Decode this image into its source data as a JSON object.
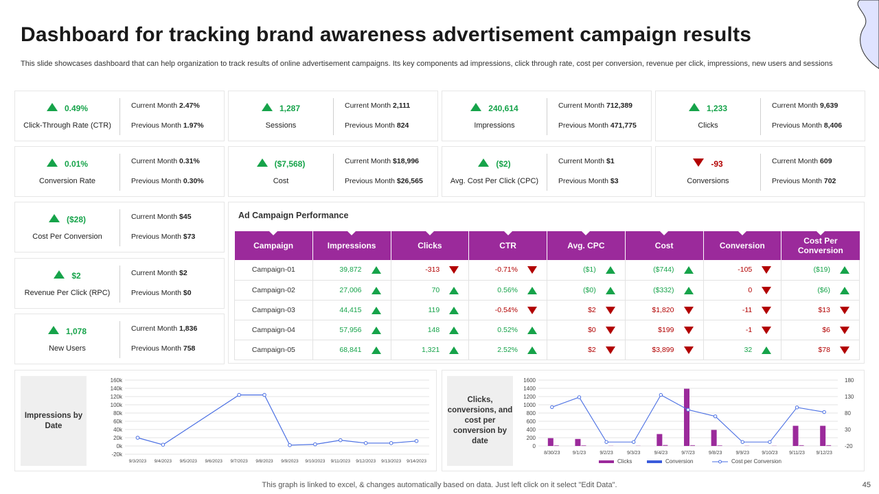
{
  "title": "Dashboard for tracking brand awareness advertisement campaign results",
  "subtitle": "This slide showcases dashboard that can help organization to track results of online advertisement campaigns. Its key components ad impressions, click through rate, cost per conversion, revenue per click, impressions, new users and sessions",
  "kpis": [
    {
      "value": "0.49%",
      "trend": "up",
      "label": "Click-Through Rate (CTR)",
      "current_label": "Current Month",
      "current": "2.47%",
      "previous_label": "Previous Month",
      "previous": "1.97%"
    },
    {
      "value": "1,287",
      "trend": "up",
      "label": "Sessions",
      "current_label": "Current Month",
      "current": "2,111",
      "previous_label": "Previous Month",
      "previous": "824"
    },
    {
      "value": "240,614",
      "trend": "up",
      "label": "Impressions",
      "current_label": "Current Month",
      "current": "712,389",
      "previous_label": "Previous Month",
      "previous": "471,775"
    },
    {
      "value": "1,233",
      "trend": "up",
      "label": "Clicks",
      "current_label": "Current Month",
      "current": "9,639",
      "previous_label": "Previous Month",
      "previous": "8,406"
    },
    {
      "value": "0.01%",
      "trend": "up",
      "label": "Conversion Rate",
      "current_label": "Current Month",
      "current": "0.31%",
      "previous_label": "Previous Month",
      "previous": "0.30%"
    },
    {
      "value": "($7,568)",
      "trend": "up",
      "label": "Cost",
      "current_label": "Current Month",
      "current": "$18,996",
      "previous_label": "Previous Month",
      "previous": "$26,565"
    },
    {
      "value": "($2)",
      "trend": "up",
      "label": "Avg. Cost Per Click (CPC)",
      "current_label": "Current Month",
      "current": "$1",
      "previous_label": "Previous Month",
      "previous": "$3"
    },
    {
      "value": "-93",
      "trend": "down",
      "label": "Conversions",
      "current_label": "Current Month",
      "current": "609",
      "previous_label": "Previous Month",
      "previous": "702"
    },
    {
      "value": "($28)",
      "trend": "up",
      "label": "Cost Per Conversion",
      "current_label": "Current Month",
      "current": "$45",
      "previous_label": "Previous Month",
      "previous": "$73"
    },
    {
      "value": "$2",
      "trend": "up",
      "label": "Revenue Per Click (RPC)",
      "current_label": "Current Month",
      "current": "$2",
      "previous_label": "Previous Month",
      "previous": "$0"
    },
    {
      "value": "1,078",
      "trend": "up",
      "label": "New Users",
      "current_label": "Current Month",
      "current": "1,836",
      "previous_label": "Previous Month",
      "previous": "758"
    }
  ],
  "campaign_table": {
    "title": "Ad Campaign Performance",
    "headers": [
      "Campaign",
      "Impressions",
      "Clicks",
      "CTR",
      "Avg. CPC",
      "Cost",
      "Conversion",
      "Cost Per Conversion"
    ],
    "rows": [
      {
        "name": "Campaign-01",
        "cells": [
          {
            "v": "39,872",
            "t": "up"
          },
          {
            "v": "-313",
            "t": "down"
          },
          {
            "v": "-0.71%",
            "t": "down"
          },
          {
            "v": "($1)",
            "t": "up"
          },
          {
            "v": "($744)",
            "t": "up"
          },
          {
            "v": "-105",
            "t": "down"
          },
          {
            "v": "($19)",
            "t": "up"
          }
        ]
      },
      {
        "name": "Campaign-02",
        "cells": [
          {
            "v": "27,006",
            "t": "up"
          },
          {
            "v": "70",
            "t": "up"
          },
          {
            "v": "0.56%",
            "t": "up"
          },
          {
            "v": "($0)",
            "t": "up"
          },
          {
            "v": "($332)",
            "t": "up"
          },
          {
            "v": "0",
            "t": "down"
          },
          {
            "v": "($6)",
            "t": "up"
          }
        ]
      },
      {
        "name": "Campaign-03",
        "cells": [
          {
            "v": "44,415",
            "t": "up"
          },
          {
            "v": "119",
            "t": "up"
          },
          {
            "v": "-0.54%",
            "t": "down"
          },
          {
            "v": "$2",
            "t": "down"
          },
          {
            "v": "$1,820",
            "t": "down"
          },
          {
            "v": "-11",
            "t": "down"
          },
          {
            "v": "$13",
            "t": "down"
          }
        ]
      },
      {
        "name": "Campaign-04",
        "cells": [
          {
            "v": "57,956",
            "t": "up"
          },
          {
            "v": "148",
            "t": "up"
          },
          {
            "v": "0.52%",
            "t": "up"
          },
          {
            "v": "$0",
            "t": "down"
          },
          {
            "v": "$199",
            "t": "down"
          },
          {
            "v": "-1",
            "t": "down"
          },
          {
            "v": "$6",
            "t": "down"
          }
        ]
      },
      {
        "name": "Campaign-05",
        "cells": [
          {
            "v": "68,841",
            "t": "up"
          },
          {
            "v": "1,321",
            "t": "up"
          },
          {
            "v": "2.52%",
            "t": "up"
          },
          {
            "v": "$2",
            "t": "down"
          },
          {
            "v": "$3,899",
            "t": "down"
          },
          {
            "v": "32",
            "t": "up"
          },
          {
            "v": "$78",
            "t": "down"
          }
        ]
      }
    ]
  },
  "chart_data": [
    {
      "type": "line",
      "title": "Impressions by Date",
      "x": [
        "9/3/2023",
        "9/4/2023",
        "9/5/2023",
        "9/6/2023",
        "9/7/2023",
        "9/8/2023",
        "9/9/2023",
        "9/10/2023",
        "9/11/2023",
        "9/12/2023",
        "9/13/2023",
        "9/14/2023"
      ],
      "series": [
        {
          "values": [
            20000,
            3000,
            null,
            null,
            124000,
            124000,
            2000,
            4000,
            14000,
            7000,
            7000,
            12000
          ]
        }
      ],
      "yticks": [
        "160k",
        "140k",
        "120k",
        "100k",
        "80k",
        "60k",
        "40k",
        "20k",
        "0k",
        "-20k"
      ],
      "ylim": [
        -20000,
        160000
      ],
      "grid": true
    },
    {
      "type": "bar",
      "title": "Clicks, conversions, and cost per conversion by date",
      "categories": [
        "8/30/23",
        "9/1/23",
        "9/2/23",
        "9/3/23",
        "9/4/23",
        "9/7/23",
        "9/8/23",
        "9/9/23",
        "9/10/23",
        "9/11/23",
        "9/12/23"
      ],
      "series": [
        {
          "name": "Clicks",
          "type": "bar",
          "axis": "left",
          "values": [
            190,
            170,
            0,
            0,
            290,
            1390,
            390,
            0,
            0,
            490,
            490
          ]
        },
        {
          "name": "Conversion",
          "type": "bar",
          "axis": "left",
          "values": [
            15,
            15,
            5,
            5,
            25,
            20,
            15,
            5,
            5,
            20,
            20
          ]
        },
        {
          "name": "Cost per Conversion",
          "type": "line",
          "axis": "right",
          "values": [
            98,
            128,
            -8,
            -8,
            135,
            90,
            70,
            -8,
            -8,
            97,
            83
          ]
        }
      ],
      "yticks_left": [
        "1600",
        "1400",
        "1200",
        "1000",
        "800",
        "600",
        "400",
        "200",
        "0"
      ],
      "yticks_right": [
        "180",
        "130",
        "80",
        "30",
        "-20"
      ],
      "ylim": [
        0,
        1600
      ],
      "ylim_right": [
        -20,
        180
      ],
      "legend_position": "bottom",
      "grid": true
    }
  ],
  "colors": {
    "accent": "#9b2a9b",
    "positive": "#16a34a",
    "negative": "#b20000",
    "line": "#4a6fe3",
    "conversion_bar": "#3b5bdb"
  },
  "footer": "This graph is linked to excel, & changes automatically based on data. Just left click on it select \"Edit Data\".",
  "page_number": "45"
}
